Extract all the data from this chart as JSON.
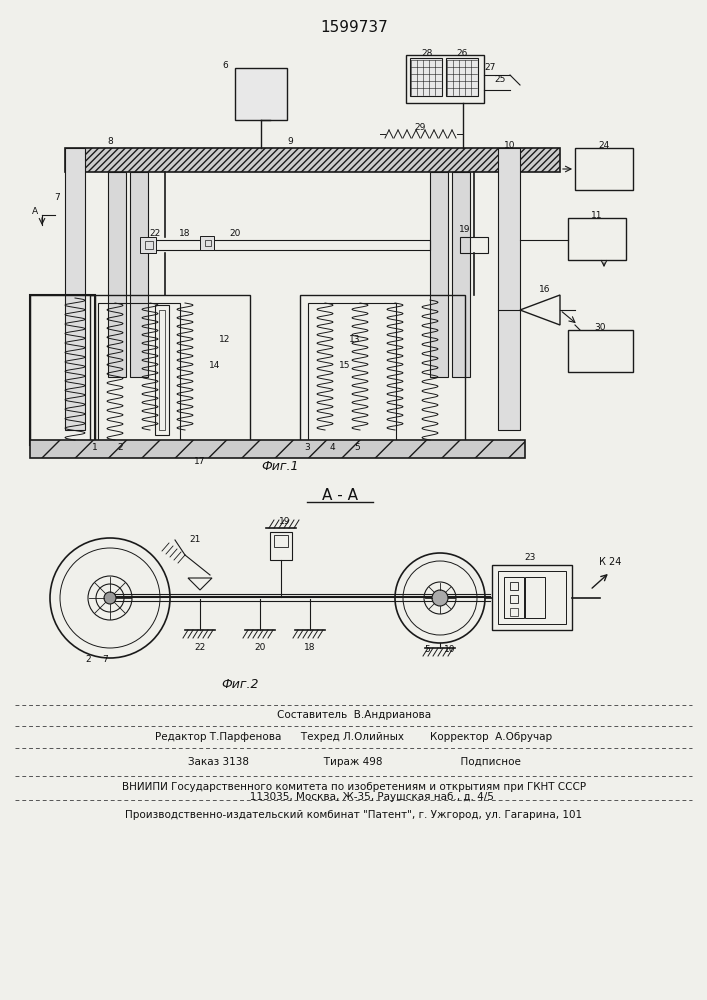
{
  "patent_number": "1599737",
  "bg_color": "#f0f0eb",
  "fig1_label": "Фиг.1",
  "fig2_label": "Фиг.2",
  "section_label": "А - А",
  "footer_lines": [
    "Составитель  В.Андрианова",
    "Редактор Т.Парфенова      Техред Л.Олийных        Корректор  А.Обручар",
    "Заказ 3138                       Тираж 498                        Подписное",
    "ВНИИПИ Государственного комитета по изобретениям и открытиям при ГКНТ СССР",
    "           113035, Москва, Ж-35, Раушская наб., д. 4/5",
    "Производственно-издательский комбинат \"Патент\", г. Ужгород, ул. Гагарина, 101"
  ],
  "line_color": "#1a1a1a",
  "text_color": "#111111",
  "hatch_color": "#888888"
}
